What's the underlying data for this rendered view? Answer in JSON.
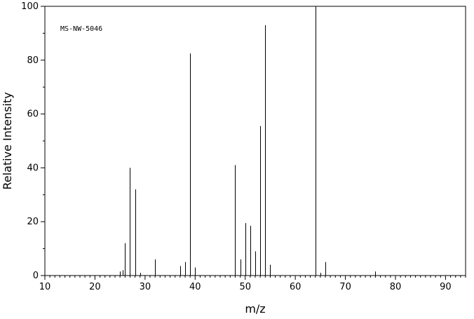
{
  "chart_data": {
    "type": "bar",
    "xlabel": "m/z",
    "ylabel": "Relative Intensity",
    "annotation": "MS-NW-5046",
    "xlim": [
      10,
      94
    ],
    "ylim": [
      0,
      100
    ],
    "x_ticks": [
      10,
      20,
      30,
      40,
      50,
      60,
      70,
      80,
      90
    ],
    "y_ticks": [
      0,
      20,
      40,
      60,
      80,
      100
    ],
    "grid": false,
    "peaks": [
      {
        "mz": 25,
        "intensity": 1.5
      },
      {
        "mz": 25.5,
        "intensity": 2
      },
      {
        "mz": 26,
        "intensity": 12
      },
      {
        "mz": 27,
        "intensity": 40
      },
      {
        "mz": 28,
        "intensity": 32
      },
      {
        "mz": 29,
        "intensity": 1
      },
      {
        "mz": 32,
        "intensity": 6
      },
      {
        "mz": 37,
        "intensity": 3.5
      },
      {
        "mz": 38,
        "intensity": 5
      },
      {
        "mz": 39,
        "intensity": 82.5
      },
      {
        "mz": 40,
        "intensity": 3
      },
      {
        "mz": 48,
        "intensity": 41
      },
      {
        "mz": 49,
        "intensity": 6
      },
      {
        "mz": 50,
        "intensity": 19.5
      },
      {
        "mz": 51,
        "intensity": 18.5
      },
      {
        "mz": 52,
        "intensity": 9
      },
      {
        "mz": 53,
        "intensity": 55.5
      },
      {
        "mz": 54,
        "intensity": 93
      },
      {
        "mz": 55,
        "intensity": 4
      },
      {
        "mz": 64,
        "intensity": 100
      },
      {
        "mz": 65,
        "intensity": 1
      },
      {
        "mz": 66,
        "intensity": 5
      },
      {
        "mz": 76,
        "intensity": 1.5
      }
    ]
  }
}
